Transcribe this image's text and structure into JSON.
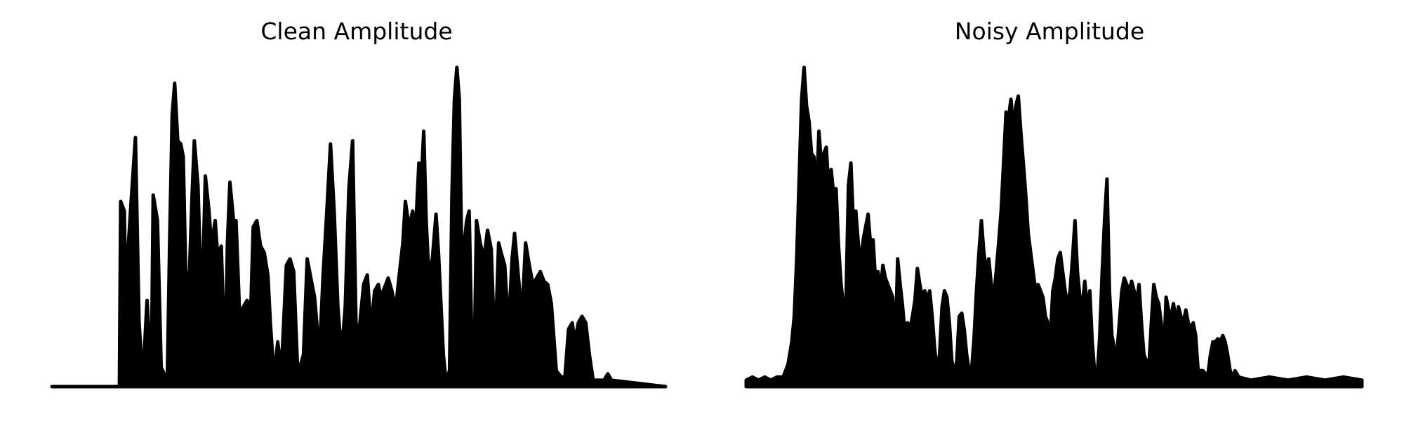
{
  "chart_data": [
    {
      "type": "area",
      "title": "Clean Amplitude",
      "axes_visible": false,
      "grid": false,
      "x_range": [
        0,
        1
      ],
      "y_range": [
        0,
        1
      ],
      "color": "#000000",
      "envelope": [
        [
          0.0,
          0.0
        ],
        [
          0.11,
          0.0
        ],
        [
          0.112,
          0.58
        ],
        [
          0.118,
          0.55
        ],
        [
          0.12,
          0.3
        ],
        [
          0.128,
          0.55
        ],
        [
          0.136,
          0.78
        ],
        [
          0.142,
          0.2
        ],
        [
          0.148,
          0.02
        ],
        [
          0.155,
          0.27
        ],
        [
          0.162,
          0.03
        ],
        [
          0.165,
          0.6
        ],
        [
          0.172,
          0.52
        ],
        [
          0.178,
          0.06
        ],
        [
          0.188,
          0.02
        ],
        [
          0.192,
          0.47
        ],
        [
          0.196,
          0.85
        ],
        [
          0.2,
          0.95
        ],
        [
          0.205,
          0.77
        ],
        [
          0.21,
          0.76
        ],
        [
          0.214,
          0.72
        ],
        [
          0.218,
          0.36
        ],
        [
          0.224,
          0.35
        ],
        [
          0.228,
          0.58
        ],
        [
          0.232,
          0.77
        ],
        [
          0.238,
          0.63
        ],
        [
          0.242,
          0.37
        ],
        [
          0.246,
          0.36
        ],
        [
          0.25,
          0.66
        ],
        [
          0.256,
          0.55
        ],
        [
          0.26,
          0.44
        ],
        [
          0.266,
          0.52
        ],
        [
          0.27,
          0.41
        ],
        [
          0.276,
          0.44
        ],
        [
          0.282,
          0.06
        ],
        [
          0.286,
          0.45
        ],
        [
          0.29,
          0.64
        ],
        [
          0.296,
          0.52
        ],
        [
          0.3,
          0.52
        ],
        [
          0.306,
          0.22
        ],
        [
          0.312,
          0.25
        ],
        [
          0.318,
          0.27
        ],
        [
          0.324,
          0.24
        ],
        [
          0.328,
          0.5
        ],
        [
          0.334,
          0.52
        ],
        [
          0.34,
          0.44
        ],
        [
          0.346,
          0.42
        ],
        [
          0.352,
          0.35
        ],
        [
          0.356,
          0.2
        ],
        [
          0.362,
          0.03
        ],
        [
          0.368,
          0.14
        ],
        [
          0.374,
          0.05
        ],
        [
          0.382,
          0.38
        ],
        [
          0.388,
          0.4
        ],
        [
          0.394,
          0.36
        ],
        [
          0.4,
          0.07
        ],
        [
          0.404,
          0.06
        ],
        [
          0.41,
          0.1
        ],
        [
          0.416,
          0.4
        ],
        [
          0.422,
          0.34
        ],
        [
          0.428,
          0.28
        ],
        [
          0.436,
          0.1
        ],
        [
          0.442,
          0.35
        ],
        [
          0.448,
          0.55
        ],
        [
          0.454,
          0.76
        ],
        [
          0.46,
          0.55
        ],
        [
          0.466,
          0.25
        ],
        [
          0.472,
          0.1
        ],
        [
          0.478,
          0.25
        ],
        [
          0.484,
          0.62
        ],
        [
          0.49,
          0.77
        ],
        [
          0.496,
          0.15
        ],
        [
          0.502,
          0.2
        ],
        [
          0.508,
          0.32
        ],
        [
          0.514,
          0.35
        ],
        [
          0.52,
          0.18
        ],
        [
          0.526,
          0.3
        ],
        [
          0.532,
          0.32
        ],
        [
          0.536,
          0.28
        ],
        [
          0.542,
          0.31
        ],
        [
          0.548,
          0.34
        ],
        [
          0.554,
          0.3
        ],
        [
          0.56,
          0.24
        ],
        [
          0.566,
          0.35
        ],
        [
          0.572,
          0.45
        ],
        [
          0.576,
          0.58
        ],
        [
          0.582,
          0.5
        ],
        [
          0.588,
          0.55
        ],
        [
          0.592,
          0.46
        ],
        [
          0.598,
          0.7
        ],
        [
          0.602,
          0.64
        ],
        [
          0.606,
          0.8
        ],
        [
          0.61,
          0.52
        ],
        [
          0.614,
          0.36
        ],
        [
          0.62,
          0.4
        ],
        [
          0.626,
          0.54
        ],
        [
          0.63,
          0.42
        ],
        [
          0.638,
          0.1
        ],
        [
          0.642,
          0.02
        ],
        [
          0.648,
          0.05
        ],
        [
          0.652,
          0.6
        ],
        [
          0.656,
          0.9
        ],
        [
          0.66,
          1.0
        ],
        [
          0.664,
          0.9
        ],
        [
          0.668,
          0.4
        ],
        [
          0.672,
          0.45
        ],
        [
          0.676,
          0.52
        ],
        [
          0.68,
          0.55
        ],
        [
          0.684,
          0.17
        ],
        [
          0.688,
          0.05
        ],
        [
          0.692,
          0.52
        ],
        [
          0.698,
          0.45
        ],
        [
          0.704,
          0.4
        ],
        [
          0.71,
          0.49
        ],
        [
          0.716,
          0.43
        ],
        [
          0.722,
          0.1
        ],
        [
          0.728,
          0.45
        ],
        [
          0.732,
          0.42
        ],
        [
          0.738,
          0.38
        ],
        [
          0.744,
          0.18
        ],
        [
          0.75,
          0.4
        ],
        [
          0.754,
          0.48
        ],
        [
          0.76,
          0.35
        ],
        [
          0.766,
          0.22
        ],
        [
          0.772,
          0.45
        ],
        [
          0.778,
          0.38
        ],
        [
          0.784,
          0.32
        ],
        [
          0.79,
          0.34
        ],
        [
          0.796,
          0.36
        ],
        [
          0.802,
          0.33
        ],
        [
          0.808,
          0.32
        ],
        [
          0.814,
          0.26
        ],
        [
          0.822,
          0.05
        ],
        [
          0.83,
          0.03
        ],
        [
          0.836,
          0.03
        ],
        [
          0.842,
          0.18
        ],
        [
          0.848,
          0.2
        ],
        [
          0.852,
          0.14
        ],
        [
          0.858,
          0.2
        ],
        [
          0.864,
          0.22
        ],
        [
          0.87,
          0.2
        ],
        [
          0.876,
          0.1
        ],
        [
          0.882,
          0.02
        ],
        [
          0.9,
          0.02
        ],
        [
          0.906,
          0.04
        ],
        [
          0.912,
          0.02
        ],
        [
          1.0,
          0.0
        ]
      ]
    },
    {
      "type": "area",
      "title": "Noisy Amplitude",
      "axes_visible": false,
      "grid": false,
      "x_range": [
        0,
        1
      ],
      "y_range": [
        0,
        1
      ],
      "color": "#000000",
      "envelope": [
        [
          0.0,
          0.02
        ],
        [
          0.01,
          0.03
        ],
        [
          0.02,
          0.02
        ],
        [
          0.03,
          0.03
        ],
        [
          0.04,
          0.02
        ],
        [
          0.05,
          0.03
        ],
        [
          0.06,
          0.03
        ],
        [
          0.068,
          0.07
        ],
        [
          0.074,
          0.14
        ],
        [
          0.078,
          0.22
        ],
        [
          0.082,
          0.4
        ],
        [
          0.086,
          0.65
        ],
        [
          0.09,
          0.9
        ],
        [
          0.094,
          1.0
        ],
        [
          0.098,
          0.88
        ],
        [
          0.102,
          0.83
        ],
        [
          0.106,
          0.73
        ],
        [
          0.11,
          0.72
        ],
        [
          0.114,
          0.58
        ],
        [
          0.118,
          0.8
        ],
        [
          0.122,
          0.7
        ],
        [
          0.126,
          0.73
        ],
        [
          0.13,
          0.75
        ],
        [
          0.134,
          0.62
        ],
        [
          0.138,
          0.68
        ],
        [
          0.142,
          0.6
        ],
        [
          0.146,
          0.62
        ],
        [
          0.15,
          0.44
        ],
        [
          0.154,
          0.32
        ],
        [
          0.158,
          0.25
        ],
        [
          0.162,
          0.26
        ],
        [
          0.166,
          0.63
        ],
        [
          0.17,
          0.7
        ],
        [
          0.174,
          0.51
        ],
        [
          0.178,
          0.55
        ],
        [
          0.182,
          0.45
        ],
        [
          0.186,
          0.38
        ],
        [
          0.19,
          0.46
        ],
        [
          0.194,
          0.5
        ],
        [
          0.198,
          0.54
        ],
        [
          0.202,
          0.44
        ],
        [
          0.206,
          0.46
        ],
        [
          0.21,
          0.33
        ],
        [
          0.214,
          0.36
        ],
        [
          0.218,
          0.3
        ],
        [
          0.222,
          0.38
        ],
        [
          0.226,
          0.34
        ],
        [
          0.23,
          0.32
        ],
        [
          0.234,
          0.3
        ],
        [
          0.238,
          0.28
        ],
        [
          0.242,
          0.1
        ],
        [
          0.246,
          0.4
        ],
        [
          0.25,
          0.32
        ],
        [
          0.254,
          0.25
        ],
        [
          0.258,
          0.16
        ],
        [
          0.262,
          0.2
        ],
        [
          0.266,
          0.18
        ],
        [
          0.27,
          0.22
        ],
        [
          0.274,
          0.27
        ],
        [
          0.278,
          0.37
        ],
        [
          0.282,
          0.32
        ],
        [
          0.286,
          0.28
        ],
        [
          0.29,
          0.3
        ],
        [
          0.294,
          0.27
        ],
        [
          0.298,
          0.3
        ],
        [
          0.302,
          0.22
        ],
        [
          0.306,
          0.12
        ],
        [
          0.31,
          0.05
        ],
        [
          0.314,
          0.1
        ],
        [
          0.318,
          0.25
        ],
        [
          0.322,
          0.3
        ],
        [
          0.326,
          0.28
        ],
        [
          0.33,
          0.2
        ],
        [
          0.334,
          0.08
        ],
        [
          0.338,
          0.04
        ],
        [
          0.342,
          0.08
        ],
        [
          0.346,
          0.22
        ],
        [
          0.35,
          0.23
        ],
        [
          0.354,
          0.18
        ],
        [
          0.358,
          0.1
        ],
        [
          0.362,
          0.05
        ],
        [
          0.366,
          0.05
        ],
        [
          0.37,
          0.15
        ],
        [
          0.374,
          0.3
        ],
        [
          0.378,
          0.42
        ],
        [
          0.382,
          0.52
        ],
        [
          0.386,
          0.42
        ],
        [
          0.39,
          0.36
        ],
        [
          0.394,
          0.4
        ],
        [
          0.398,
          0.32
        ],
        [
          0.402,
          0.28
        ],
        [
          0.406,
          0.36
        ],
        [
          0.41,
          0.45
        ],
        [
          0.414,
          0.55
        ],
        [
          0.418,
          0.7
        ],
        [
          0.422,
          0.86
        ],
        [
          0.426,
          0.84
        ],
        [
          0.43,
          0.9
        ],
        [
          0.434,
          0.8
        ],
        [
          0.438,
          0.88
        ],
        [
          0.442,
          0.91
        ],
        [
          0.446,
          0.8
        ],
        [
          0.45,
          0.7
        ],
        [
          0.454,
          0.6
        ],
        [
          0.458,
          0.48
        ],
        [
          0.462,
          0.42
        ],
        [
          0.466,
          0.36
        ],
        [
          0.47,
          0.3
        ],
        [
          0.474,
          0.32
        ],
        [
          0.478,
          0.3
        ],
        [
          0.482,
          0.28
        ],
        [
          0.486,
          0.22
        ],
        [
          0.49,
          0.2
        ],
        [
          0.494,
          0.15
        ],
        [
          0.498,
          0.3
        ],
        [
          0.502,
          0.34
        ],
        [
          0.506,
          0.4
        ],
        [
          0.51,
          0.42
        ],
        [
          0.514,
          0.36
        ],
        [
          0.518,
          0.3
        ],
        [
          0.522,
          0.25
        ],
        [
          0.526,
          0.3
        ],
        [
          0.53,
          0.4
        ],
        [
          0.534,
          0.52
        ],
        [
          0.538,
          0.36
        ],
        [
          0.542,
          0.28
        ],
        [
          0.546,
          0.25
        ],
        [
          0.55,
          0.33
        ],
        [
          0.554,
          0.24
        ],
        [
          0.558,
          0.3
        ],
        [
          0.562,
          0.14
        ],
        [
          0.566,
          0.04
        ],
        [
          0.57,
          0.03
        ],
        [
          0.574,
          0.15
        ],
        [
          0.578,
          0.35
        ],
        [
          0.582,
          0.52
        ],
        [
          0.586,
          0.65
        ],
        [
          0.59,
          0.3
        ],
        [
          0.594,
          0.16
        ],
        [
          0.598,
          0.12
        ],
        [
          0.602,
          0.1
        ],
        [
          0.606,
          0.2
        ],
        [
          0.61,
          0.3
        ],
        [
          0.614,
          0.34
        ],
        [
          0.618,
          0.32
        ],
        [
          0.622,
          0.3
        ],
        [
          0.626,
          0.33
        ],
        [
          0.63,
          0.3
        ],
        [
          0.634,
          0.26
        ],
        [
          0.638,
          0.32
        ],
        [
          0.642,
          0.2
        ],
        [
          0.646,
          0.1
        ],
        [
          0.65,
          0.08
        ],
        [
          0.654,
          0.06
        ],
        [
          0.658,
          0.2
        ],
        [
          0.662,
          0.32
        ],
        [
          0.666,
          0.28
        ],
        [
          0.67,
          0.26
        ],
        [
          0.674,
          0.2
        ],
        [
          0.678,
          0.08
        ],
        [
          0.682,
          0.28
        ],
        [
          0.686,
          0.24
        ],
        [
          0.69,
          0.22
        ],
        [
          0.694,
          0.26
        ],
        [
          0.698,
          0.2
        ],
        [
          0.702,
          0.25
        ],
        [
          0.706,
          0.22
        ],
        [
          0.71,
          0.2
        ],
        [
          0.714,
          0.24
        ],
        [
          0.718,
          0.2
        ],
        [
          0.722,
          0.18
        ],
        [
          0.726,
          0.2
        ],
        [
          0.73,
          0.16
        ],
        [
          0.734,
          0.05
        ],
        [
          0.738,
          0.05
        ],
        [
          0.742,
          0.05
        ],
        [
          0.746,
          0.04
        ],
        [
          0.75,
          0.04
        ],
        [
          0.754,
          0.1
        ],
        [
          0.758,
          0.14
        ],
        [
          0.762,
          0.14
        ],
        [
          0.766,
          0.15
        ],
        [
          0.77,
          0.14
        ],
        [
          0.774,
          0.16
        ],
        [
          0.778,
          0.14
        ],
        [
          0.782,
          0.1
        ],
        [
          0.786,
          0.05
        ],
        [
          0.79,
          0.03
        ],
        [
          0.794,
          0.05
        ],
        [
          0.8,
          0.03
        ],
        [
          0.82,
          0.02
        ],
        [
          0.85,
          0.03
        ],
        [
          0.88,
          0.02
        ],
        [
          0.91,
          0.03
        ],
        [
          0.94,
          0.02
        ],
        [
          0.97,
          0.03
        ],
        [
          1.0,
          0.02
        ]
      ]
    }
  ]
}
